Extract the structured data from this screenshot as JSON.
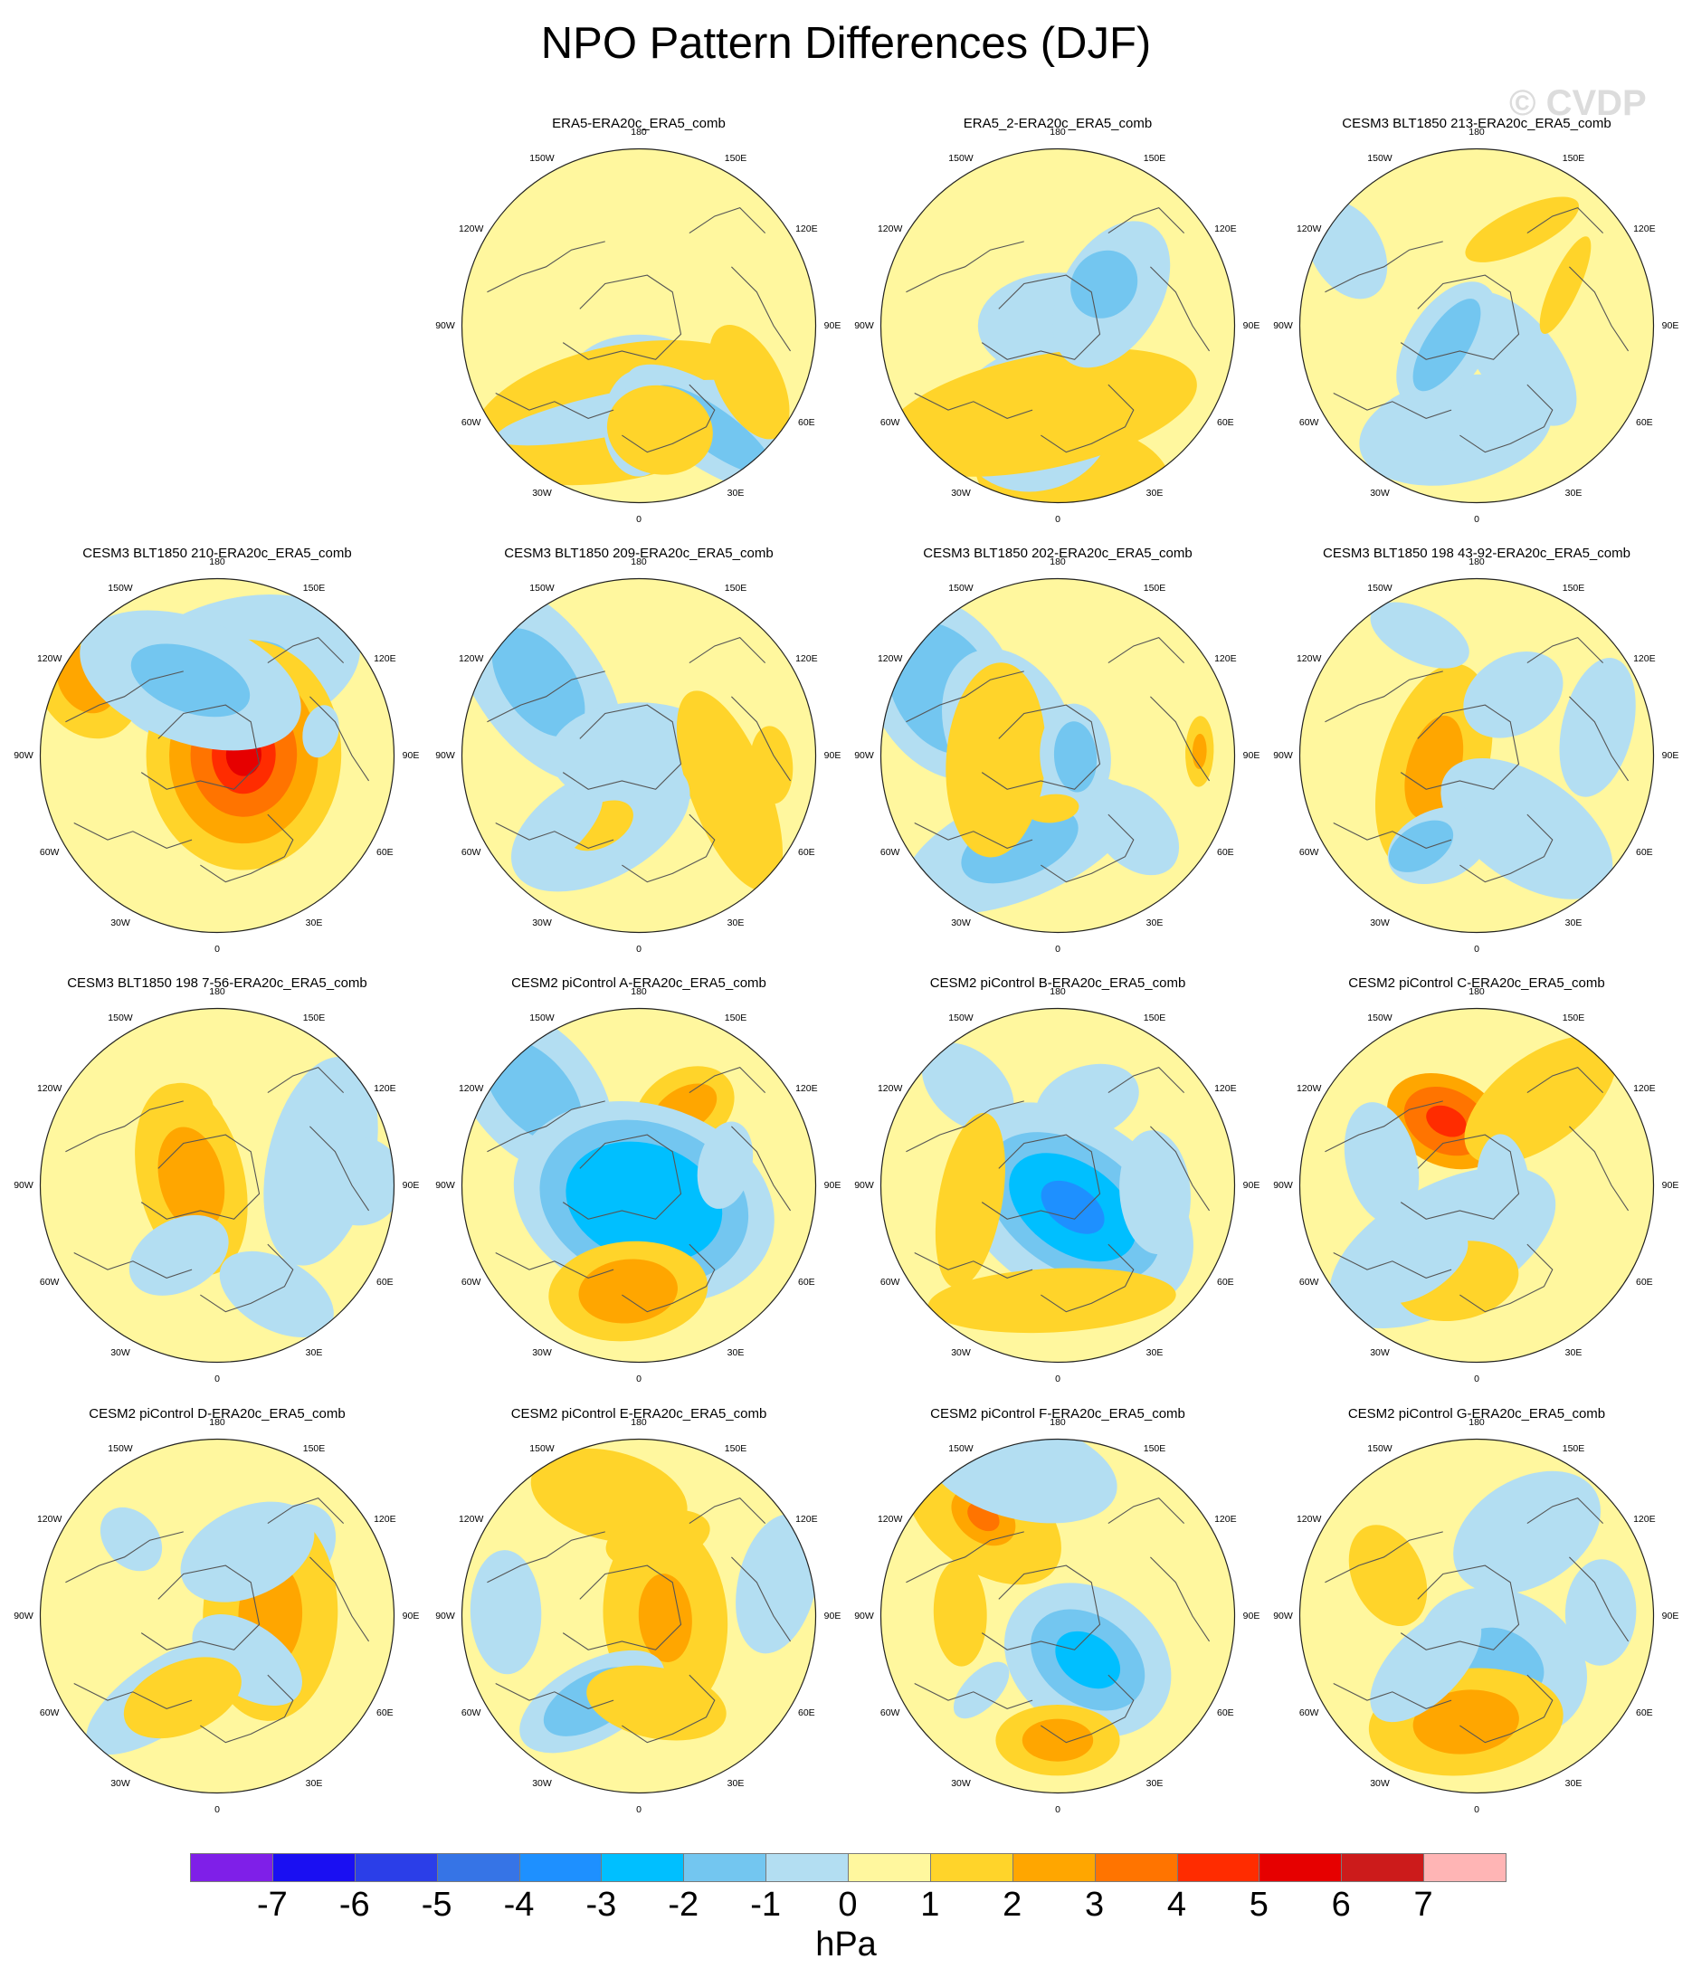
{
  "title": "NPO Pattern Differences (DJF)",
  "watermark": "© CVDP",
  "units": "hPa",
  "longitude_labels": [
    "180",
    "150E",
    "120E",
    "90E",
    "60E",
    "30E",
    "0",
    "30W",
    "60W",
    "90W",
    "120W",
    "150W"
  ],
  "colorbar": {
    "labels": [
      "-7",
      "-6",
      "-5",
      "-4",
      "-3",
      "-2",
      "-1",
      "0",
      "1",
      "2",
      "3",
      "4",
      "5",
      "6",
      "7"
    ],
    "colors": [
      "#7f1fe8",
      "#1a0ff2",
      "#2b3ee8",
      "#3674e6",
      "#1e90ff",
      "#00bfff",
      "#73c6f0",
      "#b3def2",
      "#fff79e",
      "#ffd42a",
      "#ffa600",
      "#ff7400",
      "#ff2c00",
      "#e60000",
      "#cc1b1b",
      "#ffb5b5"
    ]
  },
  "panels": [
    {
      "title": "ERA5-ERA20c_ERA5_comb",
      "blobs": [
        [
          0.28,
          0.0,
          0.38,
          0.23,
          3
        ],
        [
          0.5,
          -0.2,
          0.85,
          0.38,
          4
        ],
        [
          0.5,
          -0.2,
          0.72,
          0.12,
          3
        ],
        [
          0.55,
          0.0,
          0.2,
          0.3,
          3
        ],
        [
          0.7,
          0.6,
          0.55,
          0.22,
          3
        ],
        [
          0.72,
          0.62,
          0.4,
          0.12,
          2
        ],
        [
          0.6,
          0.2,
          0.3,
          0.25,
          4
        ],
        [
          0.7,
          1.1,
          0.35,
          0.18,
          4
        ]
      ]
    },
    {
      "title": "ERA5_2-ERA20c_ERA5_comb",
      "blobs": [
        [
          0.85,
          0.1,
          0.55,
          0.3,
          4
        ],
        [
          0.55,
          -0.25,
          0.45,
          0.4,
          3
        ],
        [
          0.0,
          0.0,
          0.45,
          0.3,
          3
        ],
        [
          0.5,
          -0.2,
          0.85,
          0.25,
          3
        ],
        [
          0.5,
          -0.2,
          0.9,
          0.32,
          4
        ],
        [
          0.35,
          2.1,
          0.45,
          0.28,
          3
        ],
        [
          0.35,
          2.3,
          0.2,
          0.18,
          2
        ]
      ]
    },
    {
      "title": "CESM3 BLT1850 213-ERA20c_ERA5_comb",
      "blobs": [
        [
          0.3,
          0.9,
          0.45,
          0.22,
          3
        ],
        [
          0.6,
          -0.2,
          0.55,
          0.3,
          3
        ],
        [
          0.55,
          -0.2,
          0.35,
          0.15,
          3
        ],
        [
          0.2,
          -1.0,
          0.4,
          0.22,
          3
        ],
        [
          0.2,
          -1.0,
          0.3,
          0.12,
          2
        ],
        [
          0.85,
          -2.1,
          0.3,
          0.2,
          3
        ],
        [
          0.6,
          2.7,
          0.35,
          0.12,
          4
        ],
        [
          0.55,
          2.0,
          0.3,
          0.08,
          4
        ]
      ]
    },
    {
      "title": "CESM3 BLT1850 210-ERA20c_ERA5_comb",
      "blobs": [
        [
          0.5,
          2.9,
          0.7,
          0.4,
          3
        ],
        [
          0.5,
          2.9,
          0.3,
          0.15,
          2
        ],
        [
          0.15,
          1.6,
          0.65,
          0.55,
          4
        ],
        [
          0.15,
          1.6,
          0.5,
          0.42,
          5
        ],
        [
          0.15,
          1.6,
          0.35,
          0.3,
          6
        ],
        [
          0.15,
          1.6,
          0.22,
          0.18,
          7
        ],
        [
          0.15,
          1.6,
          0.12,
          0.1,
          8
        ],
        [
          0.85,
          -2.1,
          0.35,
          0.28,
          4
        ],
        [
          0.85,
          -2.1,
          0.2,
          0.16,
          5
        ],
        [
          0.45,
          -2.8,
          0.65,
          0.35,
          3
        ],
        [
          0.45,
          -2.8,
          0.35,
          0.18,
          2
        ],
        [
          0.6,
          1.8,
          0.15,
          0.1,
          3
        ]
      ]
    },
    {
      "title": "CESM3 BLT1850 209-ERA20c_ERA5_comb",
      "blobs": [
        [
          0.7,
          -2.2,
          0.65,
          0.35,
          3
        ],
        [
          0.7,
          -2.2,
          0.35,
          0.2,
          2
        ],
        [
          0.0,
          0.0,
          0.5,
          0.3,
          3
        ],
        [
          0.55,
          1.2,
          0.6,
          0.22,
          4
        ],
        [
          0.75,
          1.5,
          0.22,
          0.12,
          4
        ],
        [
          0.45,
          -0.5,
          0.55,
          0.3,
          3
        ],
        [
          0.45,
          -0.5,
          0.2,
          0.12,
          4
        ],
        [
          0.6,
          -0.8,
          0.3,
          0.12,
          3
        ]
      ]
    },
    {
      "title": "CESM3 BLT1850 202-ERA20c_ERA5_comb",
      "blobs": [
        [
          0.75,
          -2.1,
          0.55,
          0.4,
          3
        ],
        [
          0.75,
          -2.1,
          0.4,
          0.28,
          2
        ],
        [
          0.3,
          -2.0,
          0.5,
          0.35,
          3
        ],
        [
          0.55,
          -0.4,
          0.7,
          0.3,
          3
        ],
        [
          0.55,
          -0.4,
          0.35,
          0.18,
          2
        ],
        [
          0.35,
          -1.5,
          0.55,
          0.28,
          4
        ],
        [
          0.1,
          1.5,
          0.3,
          0.2,
          3
        ],
        [
          0.1,
          1.5,
          0.2,
          0.12,
          2
        ],
        [
          0.8,
          1.6,
          0.2,
          0.08,
          4
        ],
        [
          0.8,
          1.6,
          0.1,
          0.04,
          5
        ],
        [
          0.3,
          -0.1,
          0.15,
          0.08,
          4
        ],
        [
          0.6,
          0.8,
          0.3,
          0.2,
          3
        ]
      ]
    },
    {
      "title": "CESM3 BLT1850 198 43-92-ERA20c_ERA5_comb",
      "blobs": [
        [
          0.25,
          -1.3,
          0.6,
          0.3,
          4
        ],
        [
          0.25,
          -1.3,
          0.3,
          0.15,
          5
        ],
        [
          0.5,
          0.6,
          0.55,
          0.3,
          3
        ],
        [
          0.55,
          -0.4,
          0.3,
          0.2,
          3
        ],
        [
          0.6,
          -0.55,
          0.2,
          0.12,
          2
        ],
        [
          0.4,
          2.6,
          0.3,
          0.22,
          3
        ],
        [
          0.75,
          -2.7,
          0.3,
          0.15,
          3
        ],
        [
          0.7,
          1.8,
          0.4,
          0.2,
          3
        ]
      ]
    },
    {
      "title": "CESM3 BLT1850 198 7-56-ERA20c_ERA5_comb",
      "blobs": [
        [
          0.15,
          -1.8,
          0.55,
          0.3,
          4
        ],
        [
          0.15,
          -1.8,
          0.3,
          0.18,
          5
        ],
        [
          0.5,
          -2.8,
          0.15,
          0.1,
          4
        ],
        [
          0.6,
          1.8,
          0.6,
          0.3,
          3
        ],
        [
          0.7,
          0.5,
          0.35,
          0.2,
          3
        ],
        [
          0.8,
          1.6,
          0.25,
          0.25,
          3
        ],
        [
          0.45,
          -0.5,
          0.3,
          0.2,
          3
        ]
      ]
    },
    {
      "title": "CESM2 piControl A-ERA20c_ERA5_comb",
      "blobs": [
        [
          0.8,
          -2.3,
          0.55,
          0.35,
          3
        ],
        [
          0.8,
          -2.3,
          0.35,
          0.2,
          2
        ],
        [
          0.5,
          2.6,
          0.3,
          0.22,
          4
        ],
        [
          0.5,
          2.6,
          0.2,
          0.12,
          5
        ],
        [
          0.1,
          0.3,
          0.75,
          0.55,
          3
        ],
        [
          0.1,
          0.3,
          0.6,
          0.45,
          2
        ],
        [
          0.1,
          0.3,
          0.45,
          0.33,
          1
        ],
        [
          0.6,
          -0.1,
          0.45,
          0.28,
          4
        ],
        [
          0.6,
          -0.1,
          0.28,
          0.18,
          5
        ],
        [
          0.5,
          1.8,
          0.25,
          0.15,
          3
        ]
      ]
    },
    {
      "title": "CESM2 piControl B-ERA20c_ERA5_comb",
      "blobs": [
        [
          0.75,
          -2.4,
          0.3,
          0.2,
          3
        ],
        [
          0.5,
          2.8,
          0.3,
          0.2,
          3
        ],
        [
          0.15,
          0.6,
          0.75,
          0.5,
          3
        ],
        [
          0.15,
          0.6,
          0.55,
          0.35,
          2
        ],
        [
          0.15,
          0.6,
          0.4,
          0.25,
          1
        ],
        [
          0.15,
          0.6,
          0.2,
          0.12,
          0
        ],
        [
          0.65,
          -0.05,
          0.7,
          0.18,
          4
        ],
        [
          0.5,
          -1.4,
          0.5,
          0.18,
          4
        ],
        [
          0.55,
          1.5,
          0.35,
          0.2,
          3
        ]
      ]
    },
    {
      "title": "CESM2 piControl C-ERA20c_ERA5_comb",
      "blobs": [
        [
          0.4,
          -2.7,
          0.35,
          0.25,
          5
        ],
        [
          0.4,
          -2.7,
          0.25,
          0.18,
          6
        ],
        [
          0.4,
          -2.7,
          0.12,
          0.08,
          7
        ],
        [
          0.55,
          -1.8,
          0.35,
          0.2,
          3
        ],
        [
          0.4,
          -0.5,
          0.7,
          0.35,
          3
        ],
        [
          0.55,
          -0.2,
          0.35,
          0.22,
          4
        ],
        [
          0.55,
          -0.6,
          0.3,
          0.15,
          3
        ],
        [
          0.6,
          2.5,
          0.5,
          0.25,
          4
        ],
        [
          0.15,
          1.5,
          0.3,
          0.15,
          3
        ]
      ]
    },
    {
      "title": "CESM2 piControl D-ERA20c_ERA5_comb",
      "blobs": [
        [
          0.55,
          2.3,
          0.3,
          0.22,
          3
        ],
        [
          0.65,
          -2.3,
          0.2,
          0.15,
          3
        ],
        [
          0.3,
          1.6,
          0.6,
          0.38,
          4
        ],
        [
          0.3,
          1.6,
          0.3,
          0.18,
          5
        ],
        [
          0.3,
          0.6,
          0.35,
          0.2,
          3
        ],
        [
          0.55,
          -0.6,
          0.5,
          0.2,
          3
        ],
        [
          0.5,
          -0.4,
          0.35,
          0.2,
          4
        ],
        [
          0.4,
          2.7,
          0.4,
          0.25,
          3
        ]
      ]
    },
    {
      "title": "CESM2 piControl E-ERA20c_ERA5_comb",
      "blobs": [
        [
          0.7,
          -2.9,
          0.45,
          0.25,
          4
        ],
        [
          0.45,
          2.9,
          0.3,
          0.15,
          4
        ],
        [
          0.15,
          1.5,
          0.55,
          0.35,
          4
        ],
        [
          0.15,
          1.5,
          0.25,
          0.15,
          5
        ],
        [
          0.55,
          -0.5,
          0.45,
          0.22,
          3
        ],
        [
          0.55,
          -0.5,
          0.3,
          0.15,
          2
        ],
        [
          0.5,
          0.2,
          0.4,
          0.2,
          4
        ],
        [
          0.8,
          1.8,
          0.4,
          0.22,
          3
        ],
        [
          0.75,
          -1.6,
          0.35,
          0.2,
          3
        ]
      ]
    },
    {
      "title": "CESM2 piControl F-ERA20c_ERA5_comb",
      "blobs": [
        [
          0.7,
          -2.5,
          0.5,
          0.3,
          4
        ],
        [
          0.7,
          -2.5,
          0.2,
          0.14,
          5
        ],
        [
          0.7,
          -2.5,
          0.1,
          0.07,
          6
        ],
        [
          0.85,
          -2.9,
          0.55,
          0.28,
          3
        ],
        [
          0.3,
          0.6,
          0.5,
          0.4,
          3
        ],
        [
          0.3,
          0.6,
          0.35,
          0.25,
          2
        ],
        [
          0.3,
          0.6,
          0.2,
          0.14,
          1
        ],
        [
          0.7,
          0.0,
          0.35,
          0.2,
          4
        ],
        [
          0.7,
          0.0,
          0.2,
          0.12,
          5
        ],
        [
          0.6,
          -0.8,
          0.2,
          0.1,
          3
        ],
        [
          0.55,
          -1.6,
          0.3,
          0.15,
          4
        ]
      ]
    },
    {
      "title": "CESM2 piControl G-ERA20c_ERA5_comb",
      "blobs": [
        [
          0.55,
          2.6,
          0.45,
          0.3,
          3
        ],
        [
          0.3,
          0.5,
          0.5,
          0.4,
          3
        ],
        [
          0.3,
          0.5,
          0.25,
          0.18,
          2
        ],
        [
          0.6,
          0.2,
          0.2,
          0.1,
          2
        ],
        [
          0.6,
          -0.1,
          0.55,
          0.3,
          4
        ],
        [
          0.6,
          -0.1,
          0.3,
          0.18,
          5
        ],
        [
          0.55,
          -2.0,
          0.3,
          0.2,
          4
        ],
        [
          0.7,
          1.6,
          0.3,
          0.2,
          3
        ],
        [
          0.4,
          -0.8,
          0.4,
          0.2,
          3
        ]
      ]
    }
  ]
}
